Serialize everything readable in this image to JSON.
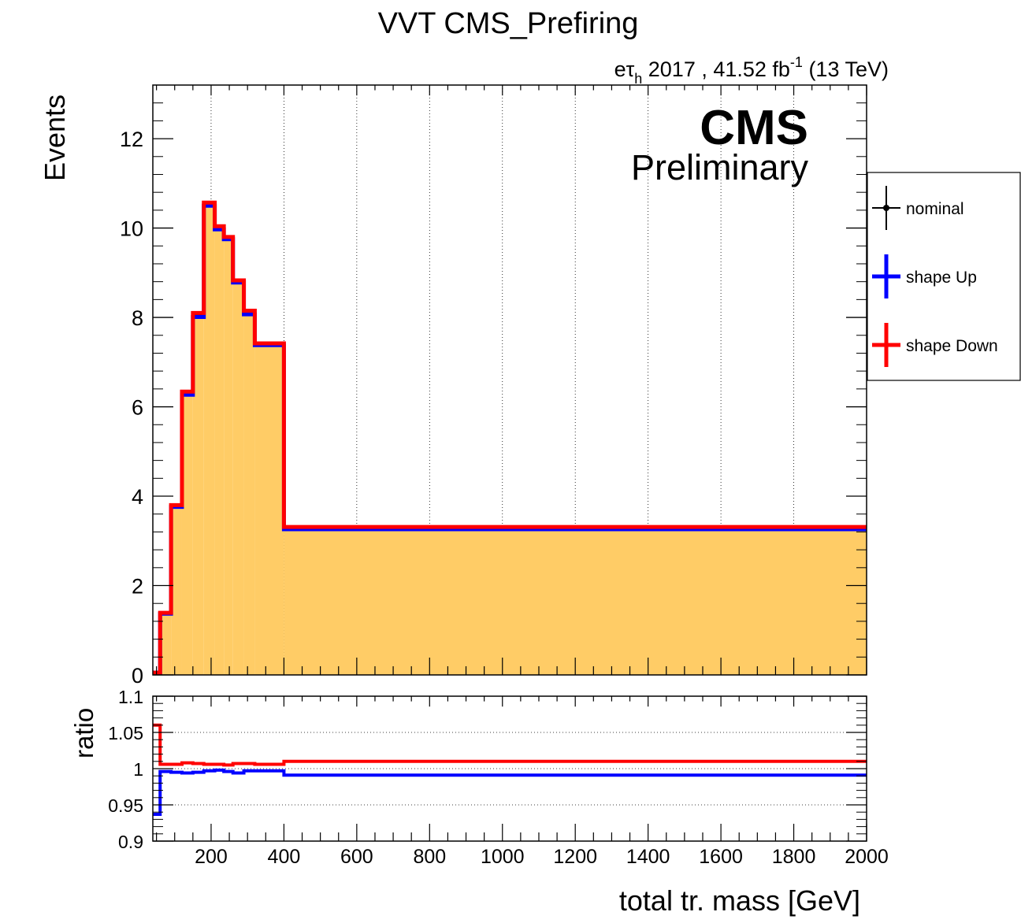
{
  "title": "VVT CMS_Prefiring",
  "lumi": {
    "prefix": "eτ",
    "sub": "h",
    "text": " 2017 , 41.52 fb",
    "sup": "-1",
    "suffix": " (13 TeV)"
  },
  "cms_label": "CMS",
  "preliminary_label": "Preliminary",
  "legend": [
    {
      "label": "nominal",
      "color": "#000000",
      "marker": "dot"
    },
    {
      "label": "shape Up",
      "color": "#0000ff",
      "marker": "cross"
    },
    {
      "label": "shape Down",
      "color": "#ff0000",
      "marker": "cross"
    }
  ],
  "colors": {
    "fill": "#ffcc66",
    "nominal": "#000000",
    "up": "#0000ff",
    "down": "#ff0000"
  },
  "chart_data": [
    {
      "type": "area",
      "panel": "main",
      "ylabel": "Events",
      "xlim": [
        40,
        2000
      ],
      "ylim": [
        0,
        13.2
      ],
      "yticks": [
        0,
        2,
        4,
        6,
        8,
        10,
        12
      ],
      "ytick_labels": [
        "0",
        "2",
        "4",
        "6",
        "8",
        "10",
        "12"
      ],
      "grid_x": true,
      "bin_edges": [
        40,
        60,
        90,
        120,
        150,
        180,
        210,
        235,
        260,
        290,
        320,
        400,
        2000
      ],
      "series": [
        {
          "name": "nominal",
          "values": [
            0.05,
            1.38,
            3.78,
            6.3,
            8.05,
            10.53,
            10.0,
            9.78,
            8.8,
            8.1,
            7.4,
            3.28
          ]
        },
        {
          "name": "shape Up",
          "values": [
            0.05,
            1.37,
            3.76,
            6.27,
            8.01,
            10.5,
            9.97,
            9.75,
            8.78,
            8.07,
            7.38,
            3.26
          ]
        },
        {
          "name": "shape Down",
          "values": [
            0.05,
            1.39,
            3.8,
            6.34,
            8.1,
            10.57,
            10.04,
            9.8,
            8.83,
            8.15,
            7.42,
            3.31
          ]
        }
      ]
    },
    {
      "type": "line",
      "panel": "ratio",
      "xlabel": "total tr. mass [GeV]",
      "ylabel": "ratio",
      "xlim": [
        40,
        2000
      ],
      "ylim": [
        0.9,
        1.1
      ],
      "yticks": [
        0.9,
        0.95,
        1.0,
        1.05,
        1.1
      ],
      "ytick_labels": [
        "0.9",
        "0.95",
        "1",
        "1.05",
        "1.1"
      ],
      "xticks": [
        200,
        400,
        600,
        800,
        1000,
        1200,
        1400,
        1600,
        1800,
        2000
      ],
      "xtick_labels": [
        "200",
        "400",
        "600",
        "800",
        "1000",
        "1200",
        "1400",
        "1600",
        "1800",
        "2000"
      ],
      "grid_y": true,
      "bin_edges": [
        40,
        60,
        90,
        120,
        150,
        180,
        210,
        235,
        260,
        290,
        320,
        400,
        2000
      ],
      "series": [
        {
          "name": "shape Up",
          "values": [
            0.937,
            0.996,
            0.995,
            0.994,
            0.995,
            0.997,
            0.998,
            0.996,
            0.994,
            0.997,
            0.997,
            0.991
          ]
        },
        {
          "name": "shape Down",
          "values": [
            1.06,
            1.006,
            1.006,
            1.008,
            1.007,
            1.006,
            1.006,
            1.005,
            1.007,
            1.007,
            1.006,
            1.01
          ]
        }
      ]
    }
  ]
}
